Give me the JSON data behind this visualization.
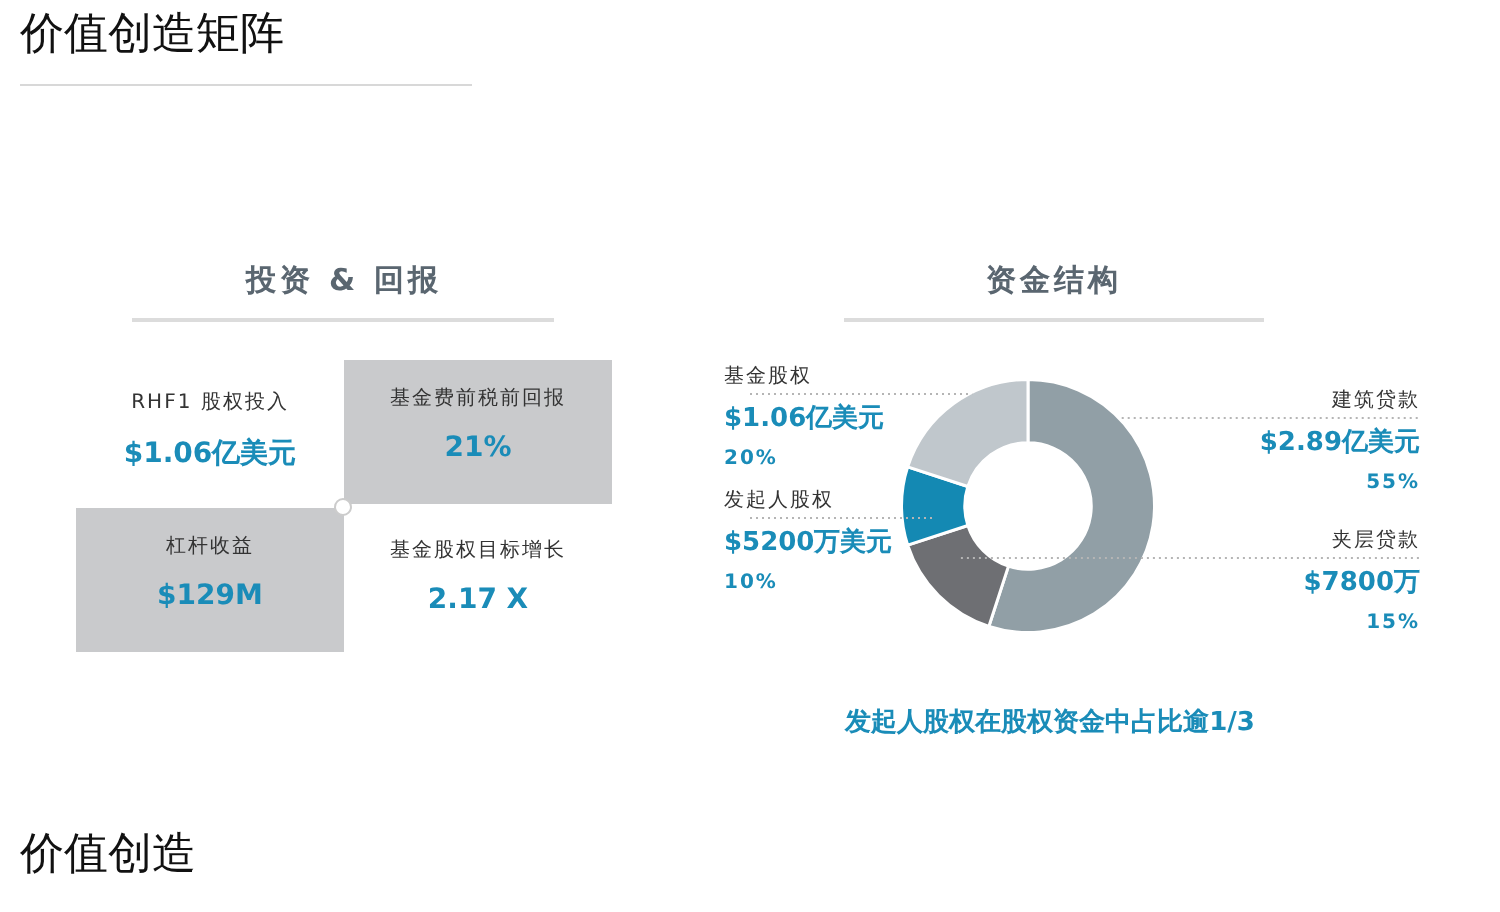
{
  "chart_data": [
    {
      "type": "other",
      "title": "价值创造矩阵"
    },
    {
      "type": "other",
      "title": "投资 & 回报",
      "annotations": [
        "RHF1 股权投入",
        "$1.06亿美元",
        "基金费前税前回报",
        "21%",
        "杠杆收益",
        "$129M",
        "基金股权目标增长",
        "2.17 X"
      ]
    },
    {
      "type": "donut",
      "title": "资金结构",
      "categories": [
        "建筑贷款",
        "夹层贷款",
        "发起人股权",
        "基金股权"
      ],
      "values": [
        55,
        15,
        10,
        20
      ],
      "colors": [
        "#919fa6",
        "#6e6f73",
        "#1489b3",
        "#c0c7cc"
      ],
      "value_labels": [
        "$2.89亿美元\n55%",
        "$7800万\n15%",
        "$5200万美元\n10%",
        "$1.06亿美元\n20%"
      ],
      "annotations": [
        "发起人股权在股权资金中占比逾1/3"
      ]
    },
    {
      "type": "other",
      "title": "价值创造"
    }
  ]
}
